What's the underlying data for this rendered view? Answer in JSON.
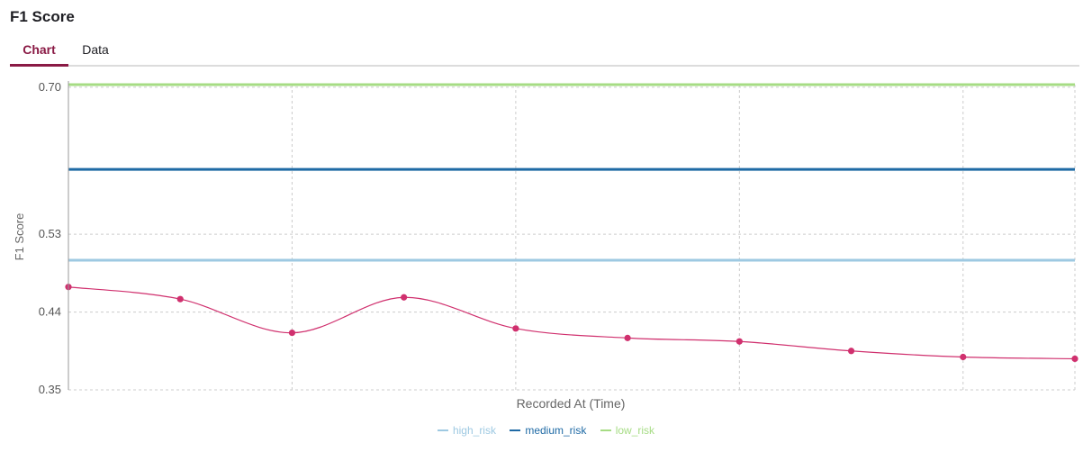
{
  "page": {
    "title": "F1 Score",
    "tabs": [
      {
        "label": "Chart",
        "active": true
      },
      {
        "label": "Data",
        "active": false
      }
    ]
  },
  "colors": {
    "accent": "#8a1a45",
    "main_series": "#d0306e",
    "high_risk": "#9ec9e2",
    "medium_risk": "#1f6aa5",
    "low_risk": "#a6dc84",
    "grid": "#cccccc"
  },
  "chart_data": {
    "type": "line",
    "title": "",
    "xlabel": "Recorded At (Time)",
    "ylabel": "F1 Score",
    "ylim": [
      0.35,
      0.703
    ],
    "yticks": [
      0.35,
      0.44,
      0.53,
      0.7
    ],
    "ytick_labels": [
      "0.35",
      "0.44",
      "0.53",
      "0.70"
    ],
    "grid": true,
    "legend_position": "bottom-center",
    "series": [
      {
        "values": [
          0.469,
          0.455,
          0.416,
          0.457,
          0.421,
          0.41,
          0.406,
          0.395,
          0.388,
          0.386
        ],
        "smooth": true,
        "markers": true
      }
    ],
    "thresholds": [
      {
        "name": "high_risk",
        "value": 0.5
      },
      {
        "name": "medium_risk",
        "value": 0.605
      },
      {
        "name": "low_risk",
        "value": 0.703
      }
    ]
  }
}
